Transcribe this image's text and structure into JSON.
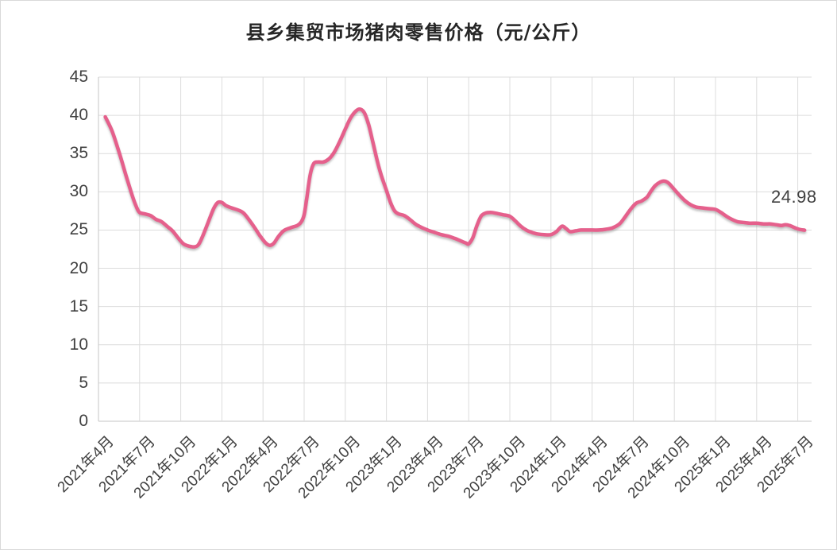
{
  "page": {
    "background": "#ffffff",
    "frame_border_color": "#d9d9d9"
  },
  "chart_data": {
    "type": "line",
    "title": "县乡集贸市场猪肉零售价格（元/公斤）",
    "unit": "元/公斤",
    "last_value_label": "24.98",
    "last_value": 24.98,
    "grid": true,
    "legend": "none",
    "ylim": [
      0,
      45
    ],
    "y_ticks": [
      0,
      5,
      10,
      15,
      20,
      25,
      30,
      35,
      40,
      45
    ],
    "x_tick_labels": [
      "2021年4月",
      "2021年7月",
      "2021年10月",
      "2022年1月",
      "2022年4月",
      "2022年7月",
      "2022年10月",
      "2023年1月",
      "2023年4月",
      "2023年7月",
      "2023年10月",
      "2024年1月",
      "2024年4月",
      "2024年7月",
      "2024年10月",
      "2025年1月",
      "2025年4月",
      "2025年7月"
    ],
    "x_unit": "months_since_2021-04 (x tick labels fall every 3 months)",
    "colors": {
      "line": "#e5618c",
      "grid": "#dcdcdc",
      "axis": "#c6c6c6",
      "text": "#404040",
      "title_text": "#262626"
    },
    "series": [
      {
        "name": "县乡集贸市场猪肉零售价格",
        "points": [
          [
            0.5,
            39.8
          ],
          [
            1,
            37.9
          ],
          [
            1.5,
            35.2
          ],
          [
            2,
            32.2
          ],
          [
            2.5,
            29.3
          ],
          [
            2.8,
            27.9
          ],
          [
            3,
            27.3
          ],
          [
            3.4,
            27.1
          ],
          [
            3.8,
            26.9
          ],
          [
            4.2,
            26.4
          ],
          [
            4.6,
            26.1
          ],
          [
            5,
            25.5
          ],
          [
            5.4,
            24.9
          ],
          [
            5.8,
            24.0
          ],
          [
            6.2,
            23.2
          ],
          [
            6.6,
            22.9
          ],
          [
            7,
            22.8
          ],
          [
            7.3,
            23.1
          ],
          [
            7.6,
            24.2
          ],
          [
            8,
            26.0
          ],
          [
            8.4,
            27.8
          ],
          [
            8.7,
            28.6
          ],
          [
            9,
            28.6
          ],
          [
            9.3,
            28.2
          ],
          [
            9.7,
            27.9
          ],
          [
            10.2,
            27.6
          ],
          [
            10.6,
            27.2
          ],
          [
            11,
            26.3
          ],
          [
            11.4,
            25.3
          ],
          [
            11.8,
            24.2
          ],
          [
            12.2,
            23.3
          ],
          [
            12.5,
            23.0
          ],
          [
            12.8,
            23.3
          ],
          [
            13.1,
            24.1
          ],
          [
            13.5,
            24.9
          ],
          [
            14,
            25.3
          ],
          [
            14.5,
            25.6
          ],
          [
            14.8,
            26.1
          ],
          [
            15,
            27.0
          ],
          [
            15.2,
            29.3
          ],
          [
            15.45,
            32.3
          ],
          [
            15.7,
            33.7
          ],
          [
            16,
            33.9
          ],
          [
            16.4,
            33.9
          ],
          [
            16.8,
            34.3
          ],
          [
            17.2,
            35.2
          ],
          [
            17.6,
            36.6
          ],
          [
            18,
            38.2
          ],
          [
            18.4,
            39.7
          ],
          [
            18.8,
            40.6
          ],
          [
            19.1,
            40.8
          ],
          [
            19.4,
            40.3
          ],
          [
            19.7,
            38.8
          ],
          [
            20,
            36.6
          ],
          [
            20.3,
            34.3
          ],
          [
            20.6,
            32.3
          ],
          [
            21,
            30.2
          ],
          [
            21.3,
            28.6
          ],
          [
            21.6,
            27.5
          ],
          [
            21.9,
            27.1
          ],
          [
            22.3,
            26.9
          ],
          [
            22.7,
            26.4
          ],
          [
            23.1,
            25.8
          ],
          [
            23.5,
            25.4
          ],
          [
            24,
            25.0
          ],
          [
            24.5,
            24.7
          ],
          [
            25,
            24.4
          ],
          [
            25.5,
            24.2
          ],
          [
            26,
            23.9
          ],
          [
            26.4,
            23.6
          ],
          [
            26.8,
            23.3
          ],
          [
            27,
            23.2
          ],
          [
            27.3,
            24.0
          ],
          [
            27.6,
            25.6
          ],
          [
            27.9,
            26.8
          ],
          [
            28.2,
            27.2
          ],
          [
            28.6,
            27.3
          ],
          [
            29,
            27.2
          ],
          [
            29.5,
            27.0
          ],
          [
            30,
            26.8
          ],
          [
            30.4,
            26.2
          ],
          [
            30.8,
            25.5
          ],
          [
            31.2,
            25.0
          ],
          [
            31.6,
            24.7
          ],
          [
            32,
            24.5
          ],
          [
            32.5,
            24.4
          ],
          [
            33,
            24.4
          ],
          [
            33.4,
            24.8
          ],
          [
            33.8,
            25.5
          ],
          [
            34.1,
            25.2
          ],
          [
            34.4,
            24.8
          ],
          [
            34.8,
            24.9
          ],
          [
            35.2,
            25.0
          ],
          [
            36,
            25.0
          ],
          [
            36.5,
            25.0
          ],
          [
            37,
            25.1
          ],
          [
            37.5,
            25.3
          ],
          [
            38,
            25.8
          ],
          [
            38.4,
            26.7
          ],
          [
            38.8,
            27.7
          ],
          [
            39.2,
            28.5
          ],
          [
            39.6,
            28.8
          ],
          [
            40,
            29.3
          ],
          [
            40.3,
            30.1
          ],
          [
            40.6,
            30.8
          ],
          [
            41,
            31.3
          ],
          [
            41.3,
            31.4
          ],
          [
            41.6,
            31.1
          ],
          [
            42,
            30.3
          ],
          [
            42.4,
            29.5
          ],
          [
            42.8,
            28.8
          ],
          [
            43.2,
            28.3
          ],
          [
            43.6,
            28.0
          ],
          [
            44,
            27.9
          ],
          [
            44.5,
            27.8
          ],
          [
            45,
            27.7
          ],
          [
            45.4,
            27.3
          ],
          [
            45.8,
            26.8
          ],
          [
            46.2,
            26.4
          ],
          [
            46.6,
            26.1
          ],
          [
            47,
            26.0
          ],
          [
            47.5,
            25.9
          ],
          [
            48,
            25.9
          ],
          [
            48.5,
            25.8
          ],
          [
            49,
            25.8
          ],
          [
            49.4,
            25.7
          ],
          [
            49.8,
            25.6
          ],
          [
            50.1,
            25.7
          ],
          [
            50.4,
            25.6
          ],
          [
            50.8,
            25.3
          ],
          [
            51.1,
            25.1
          ],
          [
            51.5,
            24.98
          ]
        ]
      }
    ]
  }
}
